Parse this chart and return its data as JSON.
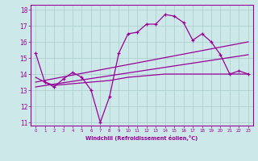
{
  "xlabel": "Windchill (Refroidissement éolien,°C)",
  "background_color": "#cce8e8",
  "grid_color": "#aacccc",
  "line_color": "#990099",
  "xlim": [
    -0.5,
    23.5
  ],
  "ylim": [
    10.8,
    18.3
  ],
  "xticks": [
    0,
    1,
    2,
    3,
    4,
    5,
    6,
    7,
    8,
    9,
    10,
    11,
    12,
    13,
    14,
    15,
    16,
    17,
    18,
    19,
    20,
    21,
    22,
    23
  ],
  "yticks": [
    11,
    12,
    13,
    14,
    15,
    16,
    17,
    18
  ],
  "line1_x": [
    0,
    1,
    2,
    3,
    4,
    5,
    6,
    7,
    8,
    9,
    10,
    11,
    12,
    13,
    14,
    15,
    16,
    17,
    18,
    19,
    20,
    21,
    22,
    23
  ],
  "line1_y": [
    15.3,
    13.5,
    13.2,
    13.7,
    14.1,
    13.8,
    13.0,
    11.0,
    12.6,
    15.3,
    16.5,
    16.6,
    17.1,
    17.1,
    17.7,
    17.6,
    17.2,
    16.1,
    16.5,
    16.0,
    15.2,
    14.0,
    14.2,
    14.0
  ],
  "line2_x": [
    0,
    23
  ],
  "line2_y": [
    13.5,
    16.0
  ],
  "line3_x": [
    0,
    23
  ],
  "line3_y": [
    13.2,
    15.2
  ],
  "line4_x": [
    0,
    1,
    2,
    3,
    4,
    5,
    6,
    7,
    8,
    9,
    10,
    11,
    12,
    13,
    14,
    15,
    16,
    17,
    18,
    19,
    20,
    21,
    22,
    23
  ],
  "line4_y": [
    13.8,
    13.5,
    13.3,
    13.35,
    13.4,
    13.45,
    13.5,
    13.55,
    13.6,
    13.7,
    13.8,
    13.85,
    13.9,
    13.95,
    14.0,
    14.0,
    14.0,
    14.0,
    14.0,
    14.0,
    14.0,
    14.0,
    14.0,
    14.0
  ]
}
